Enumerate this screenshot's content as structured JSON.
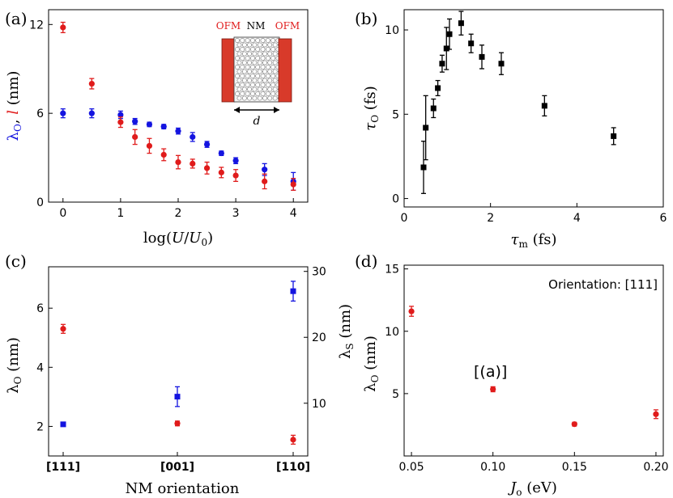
{
  "colors": {
    "red": "#e01b1b",
    "blue": "#1414e0",
    "black": "#000000"
  },
  "chart_data": [
    {
      "panel": "(a)",
      "type": "scatter",
      "xlabel": "log(U/U₀)",
      "ylabel_parts": [
        "λ",
        "O",
        ", ",
        "l",
        " (nm)"
      ],
      "xlim": [
        -0.25,
        4.25
      ],
      "ylim": [
        0,
        13
      ],
      "xticks": [
        0,
        1,
        2,
        3,
        4
      ],
      "yticks": [
        0,
        6,
        12
      ],
      "series": [
        {
          "name": "λO",
          "color": "blue",
          "marker": "circle",
          "x": [
            0,
            0.5,
            1.0,
            1.25,
            1.5,
            1.75,
            2.0,
            2.25,
            2.5,
            2.75,
            3.0,
            3.5,
            4.0
          ],
          "y": [
            6.0,
            6.0,
            5.9,
            5.45,
            5.25,
            5.1,
            4.8,
            4.4,
            3.9,
            3.3,
            2.8,
            2.2,
            1.4
          ],
          "err": [
            0.3,
            0.3,
            0.25,
            0.2,
            0.15,
            0.15,
            0.2,
            0.3,
            0.2,
            0.15,
            0.2,
            0.4,
            0.6
          ]
        },
        {
          "name": "l",
          "color": "red",
          "marker": "circle",
          "x": [
            0,
            0.5,
            1.0,
            1.25,
            1.5,
            1.75,
            2.0,
            2.25,
            2.5,
            2.75,
            3.0,
            3.5,
            4.0
          ],
          "y": [
            11.8,
            8.0,
            5.4,
            4.4,
            3.8,
            3.2,
            2.7,
            2.6,
            2.3,
            2.0,
            1.8,
            1.4,
            1.2
          ],
          "err": [
            0.35,
            0.35,
            0.35,
            0.5,
            0.5,
            0.4,
            0.45,
            0.3,
            0.4,
            0.35,
            0.4,
            0.5,
            0.4
          ]
        }
      ],
      "inset": {
        "label_left": "OFM",
        "label_mid": "NM",
        "label_right": "OFM",
        "dim_label": "d"
      }
    },
    {
      "panel": "(b)",
      "type": "scatter",
      "xlabel": "τm (fs)",
      "ylabel": "τO (fs)",
      "xlim": [
        0,
        6
      ],
      "ylim": [
        -0.5,
        11.2
      ],
      "xticks": [
        0,
        2,
        4,
        6
      ],
      "yticks": [
        0,
        5,
        10
      ],
      "series": [
        {
          "name": "τO",
          "color": "black",
          "marker": "square",
          "x": [
            0.45,
            0.5,
            0.68,
            0.78,
            0.88,
            0.98,
            1.05,
            1.32,
            1.55,
            1.8,
            2.25,
            3.25,
            4.85
          ],
          "y": [
            1.85,
            4.2,
            5.35,
            6.55,
            8.0,
            8.9,
            9.75,
            10.4,
            9.2,
            8.4,
            8.0,
            5.5,
            3.7
          ],
          "err": [
            1.55,
            1.9,
            0.55,
            0.45,
            0.5,
            1.25,
            0.9,
            0.7,
            0.55,
            0.7,
            0.65,
            0.6,
            0.5
          ]
        }
      ]
    },
    {
      "panel": "(c)",
      "type": "scatter",
      "xlabel": "NM orientation",
      "categories": [
        "[111]",
        "[001]",
        "[110]"
      ],
      "ylabel": "λO (nm)",
      "ylabel_right": "λS (nm)",
      "ylim": [
        1.0,
        7.4
      ],
      "ylim_right": [
        2.0,
        30.7
      ],
      "yticks": [
        2,
        4,
        6
      ],
      "yticks_right": [
        10,
        20,
        30
      ],
      "series": [
        {
          "name": "λO",
          "axis": "left",
          "color": "red",
          "marker": "circle",
          "values": [
            5.3,
            2.1,
            1.55
          ],
          "err": [
            0.15,
            0.08,
            0.15
          ]
        },
        {
          "name": "λS",
          "axis": "right",
          "color": "blue",
          "marker": "square",
          "values": [
            6.8,
            11.0,
            27.0
          ],
          "err": [
            0.3,
            1.5,
            1.5
          ]
        }
      ]
    },
    {
      "panel": "(d)",
      "type": "scatter",
      "xlabel": "Jo (eV)",
      "ylabel": "λO (nm)",
      "annotation": "Orientation: [111]",
      "callout": "[(a)]",
      "xlim": [
        0.0455,
        0.2045
      ],
      "ylim": [
        0.0,
        15.3
      ],
      "xticks": [
        0.05,
        0.1,
        0.15,
        0.2
      ],
      "xticklabels": [
        "0.05",
        "0.10",
        "0.15",
        "0.20"
      ],
      "yticks": [
        5,
        10,
        15
      ],
      "series": [
        {
          "name": "λO",
          "color": "red",
          "marker": "circle",
          "x": [
            0.05,
            0.1,
            0.15,
            0.2
          ],
          "y": [
            11.6,
            5.35,
            2.55,
            3.35
          ],
          "err": [
            0.4,
            0.2,
            0.15,
            0.35
          ]
        }
      ]
    }
  ]
}
